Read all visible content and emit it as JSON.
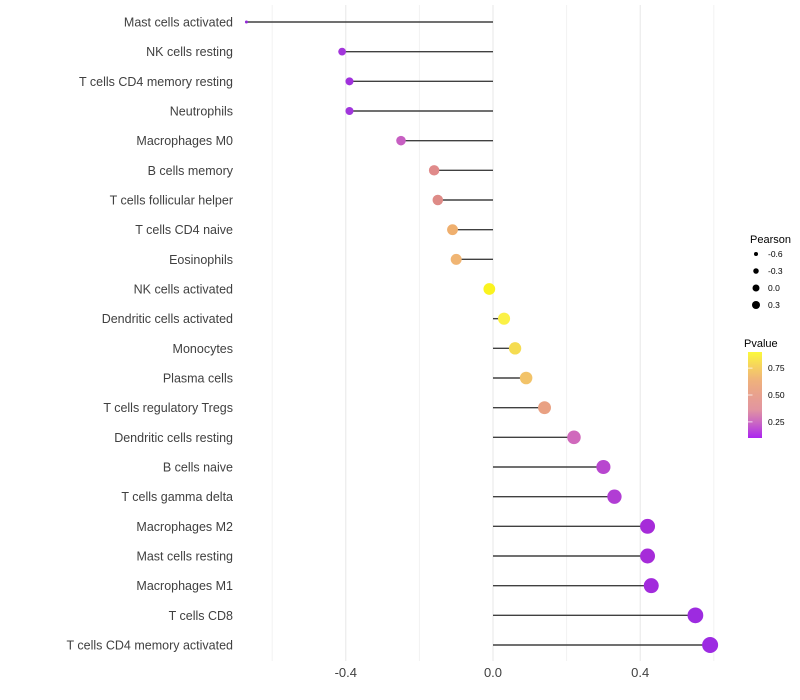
{
  "chart_data": {
    "type": "lollipop",
    "orientation": "horizontal",
    "title": "",
    "xlabel": "",
    "ylabel": "",
    "x_tick_labels": [
      "-0.4",
      "0.0",
      "0.4"
    ],
    "x_ticks": [
      -0.4,
      0.0,
      0.4
    ],
    "x_minor_ticks": [
      -0.6,
      -0.2,
      0.2,
      0.6
    ],
    "xlim": [
      -0.7,
      0.63
    ],
    "grid": "vertical-only",
    "size_domain": [
      -0.67,
      0.59
    ],
    "points": [
      {
        "label": "Mast cells activated",
        "pearson": -0.67,
        "pvalue": 0.1,
        "color": "#9229D6"
      },
      {
        "label": "NK cells resting",
        "pearson": -0.41,
        "pvalue": 0.15,
        "color": "#A336DB"
      },
      {
        "label": "T cells CD4 memory resting",
        "pearson": -0.39,
        "pvalue": 0.13,
        "color": "#A031DC"
      },
      {
        "label": "Neutrophils",
        "pearson": -0.39,
        "pvalue": 0.14,
        "color": "#A136DC"
      },
      {
        "label": "Macrophages M0",
        "pearson": -0.25,
        "pvalue": 0.38,
        "color": "#C75FC2"
      },
      {
        "label": "B cells memory",
        "pearson": -0.16,
        "pvalue": 0.52,
        "color": "#E08A8A"
      },
      {
        "label": "T cells follicular helper",
        "pearson": -0.15,
        "pvalue": 0.52,
        "color": "#DE8B87"
      },
      {
        "label": "T cells CD4 naive",
        "pearson": -0.11,
        "pvalue": 0.64,
        "color": "#EFAF6E"
      },
      {
        "label": "Eosinophils",
        "pearson": -0.1,
        "pvalue": 0.66,
        "color": "#F0B573"
      },
      {
        "label": "NK cells activated",
        "pearson": -0.01,
        "pvalue": 0.9,
        "color": "#FAF31F"
      },
      {
        "label": "Dendritic cells activated",
        "pearson": 0.03,
        "pvalue": 0.87,
        "color": "#FBF146"
      },
      {
        "label": "Monocytes",
        "pearson": 0.06,
        "pvalue": 0.82,
        "color": "#F5DC51"
      },
      {
        "label": "Plasma cells",
        "pearson": 0.09,
        "pvalue": 0.72,
        "color": "#F2C369"
      },
      {
        "label": "T cells regulatory  Tregs",
        "pearson": 0.14,
        "pvalue": 0.58,
        "color": "#E9A183"
      },
      {
        "label": "Dendritic cells resting",
        "pearson": 0.22,
        "pvalue": 0.42,
        "color": "#D069BC"
      },
      {
        "label": "B cells naive",
        "pearson": 0.3,
        "pvalue": 0.28,
        "color": "#B846CF"
      },
      {
        "label": "T cells gamma delta",
        "pearson": 0.33,
        "pvalue": 0.25,
        "color": "#B13DD4"
      },
      {
        "label": "Macrophages M2",
        "pearson": 0.42,
        "pvalue": 0.17,
        "color": "#A62BD9"
      },
      {
        "label": "Mast cells resting",
        "pearson": 0.42,
        "pvalue": 0.17,
        "color": "#A62BD9"
      },
      {
        "label": "Macrophages M1",
        "pearson": 0.43,
        "pvalue": 0.15,
        "color": "#A22BDC"
      },
      {
        "label": "T cells CD8",
        "pearson": 0.55,
        "pvalue": 0.12,
        "color": "#9D2BE0"
      },
      {
        "label": "T cells CD4 memory activated",
        "pearson": 0.59,
        "pvalue": 0.11,
        "color": "#9D2BE2"
      }
    ]
  },
  "legend": {
    "size": {
      "title": "Pearson",
      "entries": [
        {
          "label": "-0.6",
          "diameter": 4
        },
        {
          "label": "-0.3",
          "diameter": 5.5
        },
        {
          "label": "0.0",
          "diameter": 7
        },
        {
          "label": "0.3",
          "diameter": 8
        }
      ],
      "dot_color": "#000000"
    },
    "color": {
      "title": "Pvalue",
      "tick_labels": [
        "0.75",
        "0.50",
        "0.25"
      ],
      "value_range": [
        0.1,
        0.9
      ],
      "gradient_stops_bottom_to_top": [
        "#AB24F0",
        "#C863C6",
        "#E295A0",
        "#E8A18E",
        "#EFB17C",
        "#F6D25F",
        "#FBF93B"
      ]
    }
  },
  "colors": {
    "background": "#FFFFFF",
    "grid_major": "#E7E7E7",
    "grid_minor": "#F2F2F2",
    "stem": "#404040",
    "axis_text": "#404040",
    "legend_text": "#000000"
  }
}
